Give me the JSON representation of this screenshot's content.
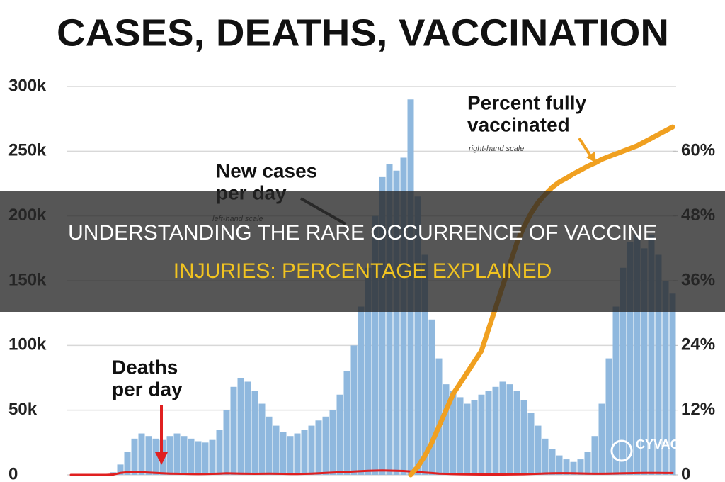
{
  "chart_data": {
    "type": "bar",
    "title": "CASES, DEATHS, VACCINATION",
    "categories": [
      null,
      null,
      null,
      null,
      null,
      null,
      null,
      null,
      null,
      null,
      null,
      null,
      null,
      null,
      null,
      null,
      null,
      null,
      null,
      null,
      null,
      null,
      null,
      null,
      null,
      null,
      null,
      null,
      null,
      null,
      null,
      null,
      null,
      null,
      null,
      null,
      null,
      null,
      null,
      null,
      null,
      null,
      null,
      null,
      null,
      null,
      null,
      null,
      null,
      null,
      null,
      null,
      null,
      null,
      null,
      null,
      null,
      null,
      null,
      null,
      null,
      null,
      null,
      null,
      null,
      null,
      null,
      null,
      null,
      null,
      null,
      null,
      null,
      null,
      null,
      null,
      null,
      null,
      null,
      null,
      null,
      null,
      null,
      null,
      null,
      null
    ],
    "series": [
      {
        "type": "bar",
        "color": "#8fb8de",
        "values": [
          0,
          0,
          0,
          0,
          0,
          0,
          2000,
          8000,
          18000,
          28000,
          32000,
          30000,
          28000,
          27000,
          30000,
          32000,
          30000,
          28000,
          26000,
          25000,
          27000,
          35000,
          50000,
          68000,
          75000,
          72000,
          65000,
          55000,
          45000,
          38000,
          33000,
          30000,
          32000,
          35000,
          38000,
          42000,
          45000,
          50000,
          62000,
          80000,
          100000,
          130000,
          160000,
          200000,
          230000,
          240000,
          235000,
          245000,
          290000,
          215000,
          170000,
          120000,
          90000,
          70000,
          65000,
          60000,
          55000,
          58000,
          62000,
          65000,
          68000,
          72000,
          70000,
          65000,
          58000,
          48000,
          38000,
          28000,
          20000,
          15000,
          12000,
          10000,
          12000,
          18000,
          30000,
          55000,
          90000,
          130000,
          160000,
          180000,
          185000,
          175000,
          185000,
          170000,
          150000,
          140000
        ]
      },
      {
        "type": "line",
        "color": "#e02020",
        "values": [
          0,
          0,
          0,
          0,
          0,
          0,
          300,
          1500,
          2000,
          2200,
          2000,
          1800,
          1500,
          1200,
          1000,
          900,
          800,
          700,
          600,
          700,
          800,
          1000,
          1200,
          1100,
          1000,
          900,
          800,
          900,
          1000,
          900,
          800,
          700,
          700,
          800,
          1000,
          1200,
          1500,
          1800,
          2000,
          2300,
          2600,
          2900,
          3200,
          3300,
          3400,
          3300,
          3200,
          3000,
          2600,
          2200,
          1800,
          1400,
          1000,
          800,
          600,
          500,
          400,
          350,
          300,
          300,
          300,
          300,
          350,
          400,
          500,
          700,
          900,
          1100,
          1200,
          1300,
          1300,
          1200,
          1100,
          1000,
          900,
          900,
          1000,
          1100,
          1200,
          1300,
          1400,
          1500,
          1500,
          1500,
          1400,
          1400
        ]
      },
      {
        "type": "line",
        "axis": "y2",
        "color": "#f0a020",
        "values": [
          null,
          null,
          null,
          null,
          null,
          null,
          null,
          null,
          null,
          null,
          null,
          null,
          null,
          null,
          null,
          null,
          null,
          null,
          null,
          null,
          null,
          null,
          null,
          null,
          null,
          null,
          null,
          null,
          null,
          null,
          null,
          null,
          null,
          null,
          null,
          null,
          null,
          null,
          null,
          null,
          null,
          null,
          null,
          null,
          null,
          null,
          null,
          null,
          0,
          1.5,
          3.5,
          6,
          9,
          12,
          15,
          17,
          19,
          21,
          23,
          27,
          31,
          35,
          39,
          43,
          46,
          48.5,
          50.5,
          52,
          53.3,
          54.3,
          55,
          55.8,
          56.5,
          57.2,
          57.8,
          58.5,
          59,
          59.5,
          60,
          60.5,
          61,
          61.7,
          62.4,
          63.1,
          63.8,
          64.5
        ]
      }
    ],
    "ylim": [
      0,
      300000
    ],
    "yticks": [
      0,
      {
        "value": 50000,
        "label": "50k"
      },
      {
        "value": 100000,
        "label": "100k"
      },
      {
        "value": 150000,
        "label": "150k"
      },
      {
        "value": 200000,
        "label": "200k"
      },
      {
        "value": 250000,
        "label": "250k"
      },
      {
        "value": 300000,
        "label": "300k"
      }
    ],
    "y2lim": [
      0,
      72
    ],
    "y2ticks": [
      0,
      {
        "value": 12,
        "label": "12%"
      },
      {
        "value": 24,
        "label": "24%"
      },
      {
        "value": 36,
        "label": "36%"
      },
      {
        "value": 48,
        "label": "48%"
      },
      {
        "value": 60,
        "label": "60%"
      }
    ],
    "grid": true,
    "annotations": [
      "New cases",
      "per day",
      "left-hand scale",
      "Percent fully",
      "vaccinated",
      "right-hand scale",
      "Deaths",
      "per day"
    ]
  },
  "banner": {
    "lines": [
      "UNDERSTANDING THE RARE OCCURRENCE OF VACCINE",
      "INJURIES: PERCENTAGE EXPLAINED"
    ]
  },
  "logo": "CYVAC"
}
